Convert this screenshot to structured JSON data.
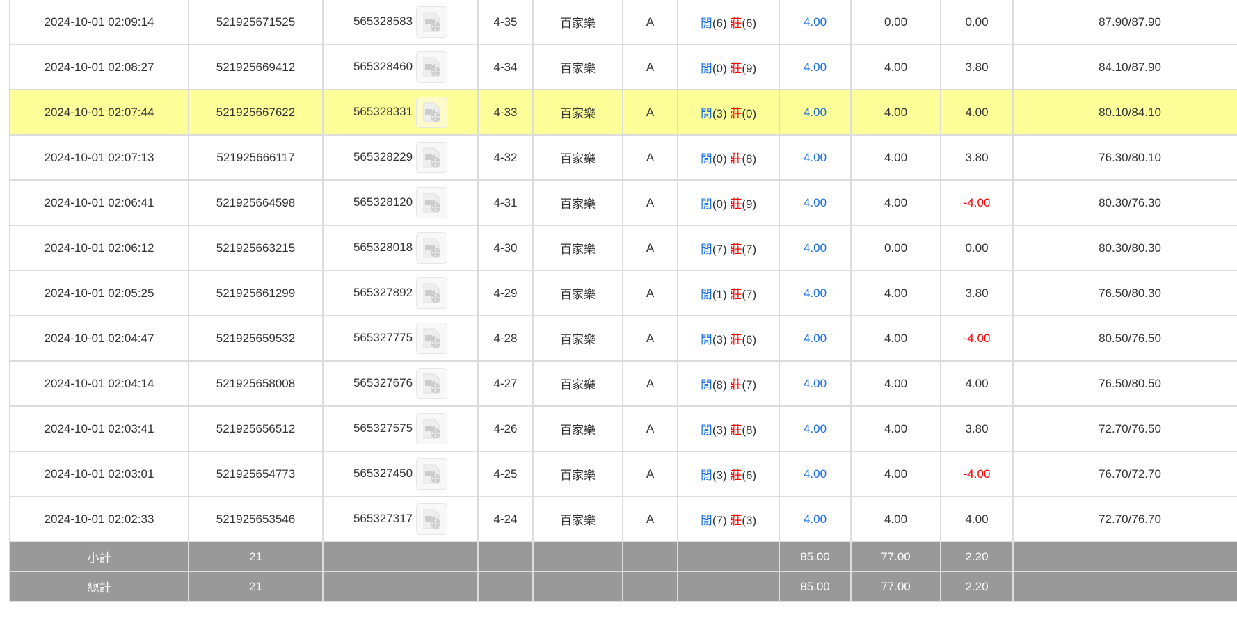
{
  "rows": [
    {
      "time": "2024-10-01 02:09:14",
      "bet_id": "521925671525",
      "round_id": "565328583",
      "table_no": "4-35",
      "game": "百家樂",
      "seat": "A",
      "player_label": "閒",
      "player": "(6)",
      "banker_label": "莊",
      "banker": "(6)",
      "bet": "4.00",
      "valid": "0.00",
      "win": "0.00",
      "balance": "87.90/87.90"
    },
    {
      "time": "2024-10-01 02:08:27",
      "bet_id": "521925669412",
      "round_id": "565328460",
      "table_no": "4-34",
      "game": "百家樂",
      "seat": "A",
      "player_label": "閒",
      "player": "(0)",
      "banker_label": "莊",
      "banker": "(9)",
      "bet": "4.00",
      "valid": "4.00",
      "win": "3.80",
      "balance": "84.10/87.90"
    },
    {
      "time": "2024-10-01 02:07:44",
      "bet_id": "521925667622",
      "round_id": "565328331",
      "table_no": "4-33",
      "game": "百家樂",
      "seat": "A",
      "player_label": "閒",
      "player": "(3)",
      "banker_label": "莊",
      "banker": "(0)",
      "bet": "4.00",
      "valid": "4.00",
      "win": "4.00",
      "balance": "80.10/84.10",
      "highlighted": true
    },
    {
      "time": "2024-10-01 02:07:13",
      "bet_id": "521925666117",
      "round_id": "565328229",
      "table_no": "4-32",
      "game": "百家樂",
      "seat": "A",
      "player_label": "閒",
      "player": "(0)",
      "banker_label": "莊",
      "banker": "(8)",
      "bet": "4.00",
      "valid": "4.00",
      "win": "3.80",
      "balance": "76.30/80.10"
    },
    {
      "time": "2024-10-01 02:06:41",
      "bet_id": "521925664598",
      "round_id": "565328120",
      "table_no": "4-31",
      "game": "百家樂",
      "seat": "A",
      "player_label": "閒",
      "player": "(0)",
      "banker_label": "莊",
      "banker": "(9)",
      "bet": "4.00",
      "valid": "4.00",
      "win": "-4.00",
      "balance": "80.30/76.30"
    },
    {
      "time": "2024-10-01 02:06:12",
      "bet_id": "521925663215",
      "round_id": "565328018",
      "table_no": "4-30",
      "game": "百家樂",
      "seat": "A",
      "player_label": "閒",
      "player": "(7)",
      "banker_label": "莊",
      "banker": "(7)",
      "bet": "4.00",
      "valid": "0.00",
      "win": "0.00",
      "balance": "80.30/80.30"
    },
    {
      "time": "2024-10-01 02:05:25",
      "bet_id": "521925661299",
      "round_id": "565327892",
      "table_no": "4-29",
      "game": "百家樂",
      "seat": "A",
      "player_label": "閒",
      "player": "(1)",
      "banker_label": "莊",
      "banker": "(7)",
      "bet": "4.00",
      "valid": "4.00",
      "win": "3.80",
      "balance": "76.50/80.30"
    },
    {
      "time": "2024-10-01 02:04:47",
      "bet_id": "521925659532",
      "round_id": "565327775",
      "table_no": "4-28",
      "game": "百家樂",
      "seat": "A",
      "player_label": "閒",
      "player": "(3)",
      "banker_label": "莊",
      "banker": "(6)",
      "bet": "4.00",
      "valid": "4.00",
      "win": "-4.00",
      "balance": "80.50/76.50"
    },
    {
      "time": "2024-10-01 02:04:14",
      "bet_id": "521925658008",
      "round_id": "565327676",
      "table_no": "4-27",
      "game": "百家樂",
      "seat": "A",
      "player_label": "閒",
      "player": "(8)",
      "banker_label": "莊",
      "banker": "(7)",
      "bet": "4.00",
      "valid": "4.00",
      "win": "4.00",
      "balance": "76.50/80.50"
    },
    {
      "time": "2024-10-01 02:03:41",
      "bet_id": "521925656512",
      "round_id": "565327575",
      "table_no": "4-26",
      "game": "百家樂",
      "seat": "A",
      "player_label": "閒",
      "player": "(3)",
      "banker_label": "莊",
      "banker": "(8)",
      "bet": "4.00",
      "valid": "4.00",
      "win": "3.80",
      "balance": "72.70/76.50"
    },
    {
      "time": "2024-10-01 02:03:01",
      "bet_id": "521925654773",
      "round_id": "565327450",
      "table_no": "4-25",
      "game": "百家樂",
      "seat": "A",
      "player_label": "閒",
      "player": "(3)",
      "banker_label": "莊",
      "banker": "(6)",
      "bet": "4.00",
      "valid": "4.00",
      "win": "-4.00",
      "balance": "76.70/72.70"
    },
    {
      "time": "2024-10-01 02:02:33",
      "bet_id": "521925653546",
      "round_id": "565327317",
      "table_no": "4-24",
      "game": "百家樂",
      "seat": "A",
      "player_label": "閒",
      "player": "(7)",
      "banker_label": "莊",
      "banker": "(3)",
      "bet": "4.00",
      "valid": "4.00",
      "win": "4.00",
      "balance": "72.70/76.70"
    }
  ],
  "footer": [
    {
      "label": "小計",
      "count": "21",
      "bet": "85.00",
      "valid": "77.00",
      "win": "2.20"
    },
    {
      "label": "總計",
      "count": "21",
      "bet": "85.00",
      "valid": "77.00",
      "win": "2.20"
    }
  ],
  "icons": {
    "replay": "video-replay-icon"
  },
  "colors": {
    "highlight": "#ffff99",
    "player": "#1a6fe6",
    "banker": "#ff0000",
    "negative": "#ff0000",
    "footer_bg": "#999999"
  }
}
